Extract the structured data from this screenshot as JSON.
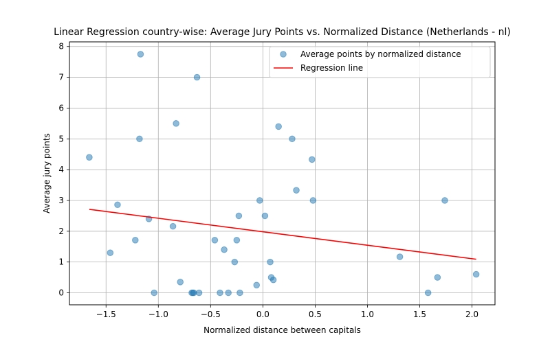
{
  "chart_data": {
    "type": "scatter",
    "title": "Linear Regression country-wise: Average Jury Points vs. Normalized Distance (Netherlands - nl)",
    "xlabel": "Normalized distance between capitals",
    "ylabel": "Average jury points",
    "xlim": [
      -1.85,
      2.22
    ],
    "ylim": [
      -0.39,
      8.15
    ],
    "x_ticks": [
      -1.5,
      -1.0,
      -0.5,
      0.0,
      0.5,
      1.0,
      1.5,
      2.0
    ],
    "x_tick_labels": [
      "−1.5",
      "−1.0",
      "−0.5",
      "0.0",
      "0.5",
      "1.0",
      "1.5",
      "2.0"
    ],
    "y_ticks": [
      0,
      1,
      2,
      3,
      4,
      5,
      6,
      7,
      8
    ],
    "y_tick_labels": [
      "0",
      "1",
      "2",
      "3",
      "4",
      "5",
      "6",
      "7",
      "8"
    ],
    "grid": true,
    "legend_position": "top-right",
    "series": [
      {
        "name": "Average points by normalized distance",
        "kind": "scatter",
        "color": "#1f77b4",
        "alpha": 0.5,
        "points": [
          [
            -1.66,
            4.4
          ],
          [
            -1.46,
            1.3
          ],
          [
            -1.39,
            2.86
          ],
          [
            -1.22,
            1.71
          ],
          [
            -1.18,
            5.0
          ],
          [
            -1.17,
            7.75
          ],
          [
            -1.09,
            2.4
          ],
          [
            -1.04,
            0.0
          ],
          [
            -0.83,
            5.5
          ],
          [
            -0.79,
            0.35
          ],
          [
            -0.86,
            2.16
          ],
          [
            -0.68,
            0.0
          ],
          [
            -0.67,
            0.0
          ],
          [
            -0.66,
            0.0
          ],
          [
            -0.63,
            7.0
          ],
          [
            -0.61,
            0.0
          ],
          [
            -0.46,
            1.71
          ],
          [
            -0.41,
            0.0
          ],
          [
            -0.37,
            1.4
          ],
          [
            -0.33,
            0.0
          ],
          [
            -0.27,
            1.0
          ],
          [
            -0.25,
            1.71
          ],
          [
            -0.23,
            2.5
          ],
          [
            -0.22,
            0.0
          ],
          [
            -0.06,
            0.25
          ],
          [
            -0.03,
            3.0
          ],
          [
            0.02,
            2.5
          ],
          [
            0.07,
            1.0
          ],
          [
            0.08,
            0.5
          ],
          [
            0.1,
            0.42
          ],
          [
            0.15,
            5.4
          ],
          [
            0.28,
            5.0
          ],
          [
            0.32,
            3.33
          ],
          [
            0.47,
            4.33
          ],
          [
            0.48,
            3.0
          ],
          [
            1.31,
            1.17
          ],
          [
            1.58,
            0.0
          ],
          [
            1.67,
            0.5
          ],
          [
            1.74,
            3.0
          ],
          [
            2.04,
            0.6
          ]
        ]
      },
      {
        "name": "Regression line",
        "kind": "line",
        "color": "#ff0000",
        "x": [
          -1.66,
          2.04
        ],
        "y": [
          2.71,
          1.09
        ]
      }
    ]
  }
}
